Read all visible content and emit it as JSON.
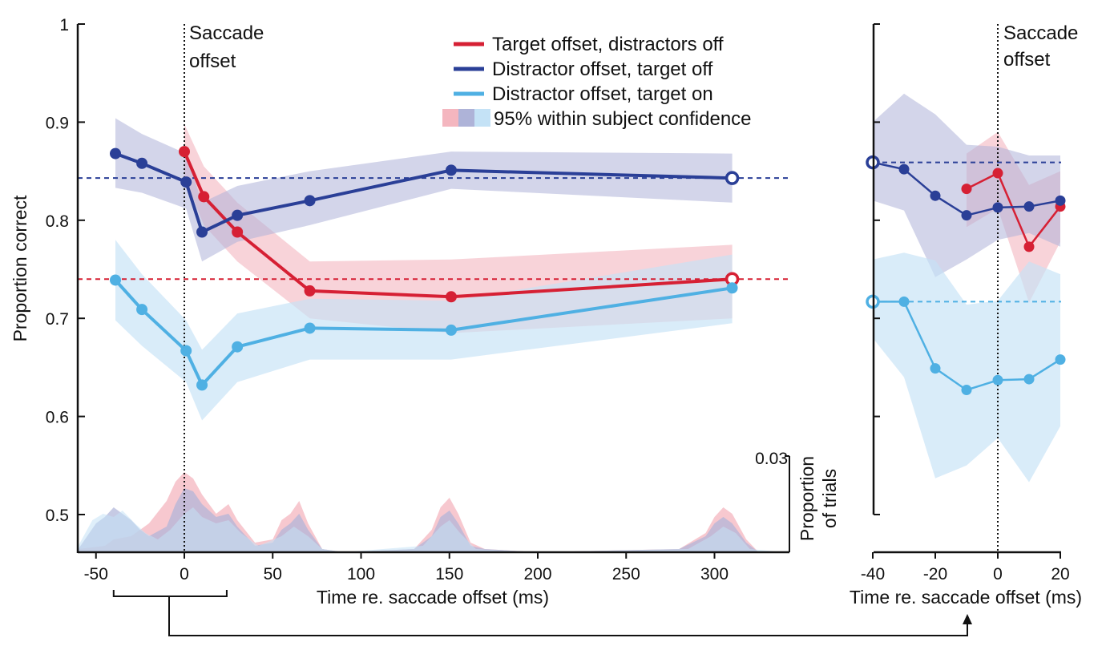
{
  "colors": {
    "target_off": "#d62034",
    "distractor_off_target_off": "#2a3f97",
    "distractor_off_target_on": "#4fb0e3",
    "band_red": "#f4b6bf",
    "band_dark": "#aeb3d8",
    "band_light": "#c4e2f6"
  },
  "chart_data": [
    {
      "type": "line",
      "panel": "main",
      "xlabel": "Time re. saccade offset (ms)",
      "ylabel": "Proportion correct",
      "x_ticks": [
        "-50",
        "0",
        "50",
        "100",
        "150",
        "200",
        "250",
        "300"
      ],
      "y_ticks": [
        "1",
        "0.9",
        "0.8",
        "0.7",
        "0.6",
        "0.5"
      ],
      "xlim": [
        -60,
        340
      ],
      "ylim": [
        0.5,
        1.0
      ],
      "vline": {
        "x": 0,
        "label_line1": "Saccade",
        "label_line2": "offset"
      },
      "series": [
        {
          "name": "Target offset, distractors off",
          "color_key": "target_off",
          "x": [
            0,
            11,
            30,
            71,
            151
          ],
          "y": [
            0.87,
            0.824,
            0.788,
            0.728,
            0.722
          ],
          "lower": [
            0.845,
            0.795,
            0.758,
            0.7,
            0.685
          ],
          "upper": [
            0.898,
            0.855,
            0.818,
            0.758,
            0.76
          ],
          "baseline": {
            "x": 310,
            "y": 0.74
          },
          "baseline_band": [
            0.7,
            0.775
          ]
        },
        {
          "name": "Distractor offset, target off",
          "color_key": "distractor_off_target_off",
          "x": [
            -39,
            -24,
            1,
            10,
            30,
            71,
            151
          ],
          "y": [
            0.868,
            0.858,
            0.839,
            0.788,
            0.805,
            0.82,
            0.851
          ],
          "lower": [
            0.833,
            0.828,
            0.812,
            0.758,
            0.778,
            0.795,
            0.832
          ],
          "upper": [
            0.904,
            0.888,
            0.868,
            0.818,
            0.835,
            0.85,
            0.87
          ],
          "baseline": {
            "x": 310,
            "y": 0.843
          },
          "baseline_band": [
            0.818,
            0.868
          ]
        },
        {
          "name": "Distractor offset, target on",
          "color_key": "distractor_off_target_on",
          "x": [
            -39,
            -24,
            1,
            10,
            30,
            71,
            151,
            310
          ],
          "y": [
            0.739,
            0.709,
            0.667,
            0.632,
            0.671,
            0.69,
            0.688,
            0.731
          ],
          "lower": [
            0.698,
            0.672,
            0.635,
            0.596,
            0.635,
            0.658,
            0.658,
            0.695
          ],
          "upper": [
            0.78,
            0.745,
            0.698,
            0.668,
            0.705,
            0.72,
            0.718,
            0.765
          ]
        }
      ],
      "legend": {
        "placement": "top-center",
        "entries": [
          "Target offset, distractors off",
          "Distractor offset, target off",
          "Distractor offset, target on",
          "95% within subject confidence"
        ]
      },
      "histogram": {
        "ylabel_line1": "Proportion",
        "ylabel_line2": "of trials",
        "scale_label": "0.03",
        "scale_max": 0.03,
        "red": [
          [
            -60,
            0.001
          ],
          [
            -45,
            0.002
          ],
          [
            -40,
            0.004
          ],
          [
            -30,
            0.005
          ],
          [
            -20,
            0.009
          ],
          [
            -10,
            0.016
          ],
          [
            -5,
            0.022
          ],
          [
            0,
            0.025
          ],
          [
            5,
            0.023
          ],
          [
            10,
            0.018
          ],
          [
            18,
            0.012
          ],
          [
            25,
            0.015
          ],
          [
            30,
            0.01
          ],
          [
            40,
            0.003
          ],
          [
            50,
            0.004
          ],
          [
            55,
            0.01
          ],
          [
            60,
            0.012
          ],
          [
            65,
            0.016
          ],
          [
            70,
            0.009
          ],
          [
            78,
            0.001
          ],
          [
            90,
            0
          ],
          [
            130,
            0.001
          ],
          [
            140,
            0.007
          ],
          [
            145,
            0.014
          ],
          [
            150,
            0.017
          ],
          [
            155,
            0.012
          ],
          [
            162,
            0.003
          ],
          [
            170,
            0.001
          ],
          [
            200,
            0
          ],
          [
            280,
            0.001
          ],
          [
            295,
            0.006
          ],
          [
            300,
            0.011
          ],
          [
            305,
            0.014
          ],
          [
            310,
            0.012
          ],
          [
            318,
            0.004
          ],
          [
            325,
            0
          ],
          [
            340,
            0
          ]
        ],
        "dark": [
          [
            -60,
            0.001
          ],
          [
            -50,
            0.009
          ],
          [
            -45,
            0.011
          ],
          [
            -40,
            0.014
          ],
          [
            -35,
            0.012
          ],
          [
            -30,
            0.01
          ],
          [
            -25,
            0.007
          ],
          [
            -20,
            0.005
          ],
          [
            -10,
            0.008
          ],
          [
            -5,
            0.015
          ],
          [
            0,
            0.02
          ],
          [
            5,
            0.019
          ],
          [
            10,
            0.015
          ],
          [
            18,
            0.011
          ],
          [
            25,
            0.012
          ],
          [
            30,
            0.008
          ],
          [
            40,
            0.002
          ],
          [
            50,
            0.003
          ],
          [
            55,
            0.007
          ],
          [
            60,
            0.009
          ],
          [
            65,
            0.012
          ],
          [
            70,
            0.007
          ],
          [
            78,
            0.001
          ],
          [
            90,
            0
          ],
          [
            130,
            0.001
          ],
          [
            140,
            0.005
          ],
          [
            145,
            0.011
          ],
          [
            150,
            0.013
          ],
          [
            155,
            0.009
          ],
          [
            162,
            0.002
          ],
          [
            170,
            0.001
          ],
          [
            200,
            0
          ],
          [
            280,
            0.001
          ],
          [
            295,
            0.005
          ],
          [
            300,
            0.009
          ],
          [
            305,
            0.011
          ],
          [
            310,
            0.009
          ],
          [
            318,
            0.003
          ],
          [
            325,
            0
          ],
          [
            340,
            0
          ]
        ],
        "light": [
          [
            -60,
            0.002
          ],
          [
            -52,
            0.01
          ],
          [
            -46,
            0.012
          ],
          [
            -40,
            0.011
          ],
          [
            -35,
            0.013
          ],
          [
            -28,
            0.009
          ],
          [
            -22,
            0.006
          ],
          [
            -15,
            0.004
          ],
          [
            -8,
            0.007
          ],
          [
            0,
            0.012
          ],
          [
            5,
            0.014
          ],
          [
            10,
            0.011
          ],
          [
            18,
            0.009
          ],
          [
            25,
            0.01
          ],
          [
            32,
            0.006
          ],
          [
            42,
            0.002
          ],
          [
            55,
            0.005
          ],
          [
            62,
            0.008
          ],
          [
            70,
            0.005
          ],
          [
            78,
            0.001
          ],
          [
            90,
            0
          ],
          [
            135,
            0.002
          ],
          [
            145,
            0.008
          ],
          [
            150,
            0.01
          ],
          [
            156,
            0.006
          ],
          [
            165,
            0.001
          ],
          [
            200,
            0
          ],
          [
            285,
            0.001
          ],
          [
            298,
            0.005
          ],
          [
            305,
            0.008
          ],
          [
            312,
            0.006
          ],
          [
            320,
            0.001
          ],
          [
            340,
            0
          ]
        ]
      },
      "bracket": {
        "x_start": -40,
        "x_end": 24
      }
    },
    {
      "type": "line",
      "panel": "inset",
      "xlabel": "Time re. saccade offset (ms)",
      "x_ticks": [
        "-40",
        "-20",
        "0",
        "20"
      ],
      "xlim": [
        -40,
        20
      ],
      "ylim": [
        0.5,
        1.0
      ],
      "vline": {
        "x": 0,
        "label_line1": "Saccade",
        "label_line2": "offset"
      },
      "series": [
        {
          "name": "Target offset, distractors off",
          "color_key": "target_off",
          "x": [
            -10,
            0,
            10,
            20
          ],
          "y": [
            0.832,
            0.848,
            0.773,
            0.814
          ],
          "lower": [
            0.793,
            0.812,
            0.716,
            0.778
          ],
          "upper": [
            0.868,
            0.89,
            0.836,
            0.85
          ]
        },
        {
          "name": "Distractor offset, target off",
          "color_key": "distractor_off_target_off",
          "x": [
            -40,
            -30,
            -20,
            -10,
            0,
            10,
            20
          ],
          "y": [
            0.859,
            0.852,
            0.825,
            0.805,
            0.813,
            0.814,
            0.82
          ],
          "lower": [
            0.82,
            0.81,
            0.742,
            0.76,
            0.78,
            0.787,
            0.773
          ],
          "upper": [
            0.9,
            0.929,
            0.908,
            0.877,
            0.875,
            0.866,
            0.866
          ],
          "baseline": {
            "x": -40,
            "y": 0.859
          }
        },
        {
          "name": "Distractor offset, target on",
          "color_key": "distractor_off_target_on",
          "x": [
            -40,
            -30,
            -20,
            -10,
            0,
            10,
            20
          ],
          "y": [
            0.717,
            0.717,
            0.649,
            0.627,
            0.637,
            0.638,
            0.658
          ],
          "lower": [
            0.68,
            0.64,
            0.537,
            0.55,
            0.578,
            0.533,
            0.59
          ],
          "upper": [
            0.76,
            0.767,
            0.759,
            0.714,
            0.718,
            0.758,
            0.745
          ],
          "baseline": {
            "x": -40,
            "y": 0.717
          }
        }
      ]
    }
  ]
}
